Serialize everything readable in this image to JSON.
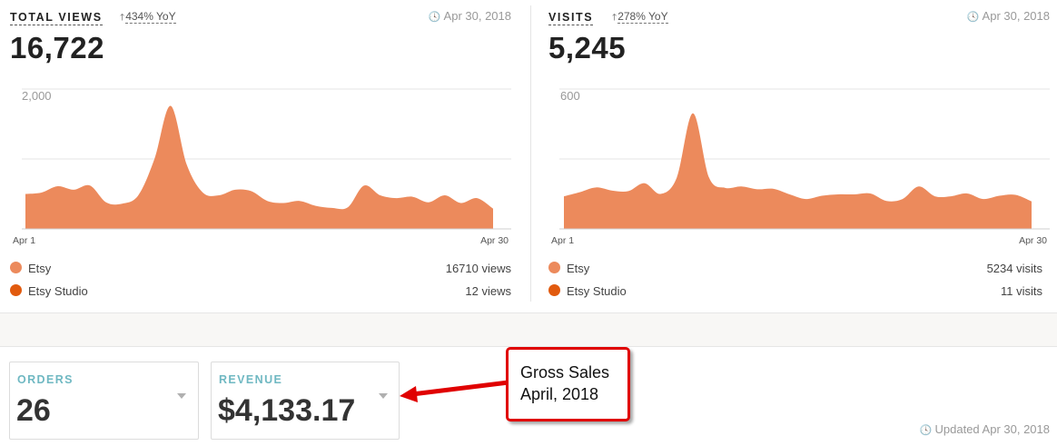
{
  "colors": {
    "etsy": "#ec8a5c",
    "etsy_studio": "#e15a0e",
    "orders_label": "#6fb8c2",
    "callout_border": "#e00000"
  },
  "panels": [
    {
      "title": "TOTAL VIEWS",
      "yoy": "434% YoY",
      "date": "Apr 30, 2018",
      "total": "16,722",
      "legend": [
        {
          "name": "Etsy",
          "value": "16710 views"
        },
        {
          "name": "Etsy Studio",
          "value": "12 views"
        }
      ]
    },
    {
      "title": "VISITS",
      "yoy": "278% YoY",
      "date": "Apr 30, 2018",
      "total": "5,245",
      "legend": [
        {
          "name": "Etsy",
          "value": "5234 visits"
        },
        {
          "name": "Etsy Studio",
          "value": "11 visits"
        }
      ]
    }
  ],
  "chart_data": [
    {
      "type": "area",
      "title": "TOTAL VIEWS",
      "y_tick_label": "2,000",
      "ylim": [
        0,
        2000
      ],
      "x_labels": [
        "Apr 1",
        "Apr 30"
      ],
      "grid": true,
      "series": [
        {
          "name": "Etsy",
          "values": [
            500,
            520,
            610,
            560,
            620,
            380,
            360,
            480,
            1000,
            1760,
            920,
            520,
            480,
            560,
            540,
            400,
            370,
            400,
            330,
            300,
            310,
            620,
            480,
            440,
            460,
            380,
            480,
            370,
            440,
            290
          ]
        }
      ]
    },
    {
      "type": "area",
      "title": "VISITS",
      "y_tick_label": "600",
      "ylim": [
        0,
        600
      ],
      "x_labels": [
        "Apr 1",
        "Apr 30"
      ],
      "grid": true,
      "series": [
        {
          "name": "Etsy",
          "values": [
            140,
            158,
            178,
            164,
            162,
            196,
            150,
            220,
            496,
            220,
            176,
            182,
            170,
            172,
            148,
            128,
            142,
            148,
            148,
            152,
            120,
            128,
            182,
            140,
            140,
            152,
            128,
            142,
            146,
            118
          ]
        }
      ]
    }
  ],
  "cards": {
    "orders": {
      "label": "ORDERS",
      "value": "26"
    },
    "revenue": {
      "label": "REVENUE",
      "value": "$4,133.17"
    }
  },
  "callout": {
    "line1": "Gross Sales",
    "line2": "April, 2018"
  },
  "footer": {
    "updated": "Updated Apr 30, 2018"
  }
}
